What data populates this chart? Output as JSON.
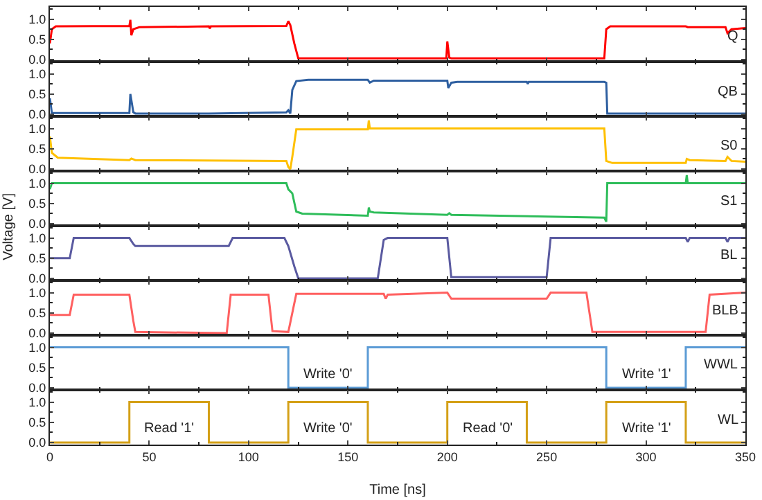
{
  "chart_data": [
    {
      "type": "line",
      "x": [
        0,
        1,
        3,
        40,
        40.5,
        41,
        42,
        45,
        80,
        80.5,
        81,
        119,
        120,
        121,
        123,
        125,
        199.5,
        200,
        201,
        202,
        279,
        280,
        282,
        320,
        321,
        340,
        341,
        343,
        350
      ],
      "series": [
        {
          "name": "Q",
          "color": "#ff0000",
          "values": [
            0.4,
            0.75,
            0.82,
            0.83,
            0.98,
            0.6,
            0.75,
            0.8,
            0.82,
            0.77,
            0.82,
            0.83,
            0.95,
            0.85,
            0.4,
            0.03,
            0.03,
            0.45,
            0.05,
            0.03,
            0.03,
            0.75,
            0.82,
            0.82,
            0.8,
            0.8,
            0.65,
            0.75,
            0.78
          ]
        }
      ],
      "xlim": [
        0,
        350
      ],
      "xticks": [
        0,
        50,
        100,
        150,
        200,
        250,
        300,
        350
      ],
      "ylim": [
        -0.05,
        1.3
      ],
      "yticks": [
        {
          "value": 0,
          "label": "0.0"
        },
        {
          "value": 0.5,
          "label": "0.5"
        },
        {
          "value": 1,
          "label": "1.0"
        }
      ],
      "tick_labels": "y",
      "grid": false,
      "legend": false
    },
    {
      "type": "line",
      "x": [
        0,
        1,
        40,
        40.5,
        42,
        43,
        80,
        119,
        120,
        121,
        122,
        124,
        130,
        160,
        161,
        163,
        199,
        200,
        200.5,
        202,
        205,
        240,
        240.5,
        241,
        279,
        280,
        280.5,
        350
      ],
      "series": [
        {
          "name": "QB",
          "color": "#2e5fa0",
          "values": [
            0.4,
            0.03,
            0.03,
            0.5,
            0.05,
            0.02,
            0.02,
            0.05,
            0.1,
            0.02,
            0.6,
            0.82,
            0.85,
            0.85,
            0.78,
            0.83,
            0.83,
            0.83,
            0.65,
            0.78,
            0.8,
            0.8,
            0.75,
            0.8,
            0.8,
            0.78,
            0.02,
            0.02
          ]
        }
      ],
      "xlim": [
        0,
        350
      ],
      "xticks": [
        0,
        50,
        100,
        150,
        200,
        250,
        300,
        350
      ],
      "ylim": [
        -0.05,
        1.3
      ],
      "yticks": [
        {
          "value": 0,
          "label": "0.0"
        },
        {
          "value": 0.5,
          "label": "0.5"
        },
        {
          "value": 1,
          "label": "1.0"
        }
      ],
      "tick_labels": "y",
      "grid": false,
      "legend": false
    },
    {
      "type": "line",
      "x": [
        0,
        1,
        4,
        40,
        41,
        43,
        119,
        120,
        121,
        122,
        124,
        160,
        160.5,
        161,
        279,
        280,
        283,
        320,
        320.5,
        322,
        340,
        341,
        343,
        350
      ],
      "series": [
        {
          "name": "S0",
          "color": "#ffc000",
          "values": [
            0.8,
            0.4,
            0.28,
            0.22,
            0.26,
            0.22,
            0.2,
            0.05,
            0,
            0.3,
            0.98,
            0.98,
            1.2,
            1.0,
            1.0,
            0.2,
            0.15,
            0.15,
            0.25,
            0.22,
            0.2,
            0.3,
            0.2,
            0.18
          ]
        }
      ],
      "xlim": [
        0,
        350
      ],
      "xticks": [
        0,
        50,
        100,
        150,
        200,
        250,
        300,
        350
      ],
      "ylim": [
        -0.05,
        1.3
      ],
      "yticks": [
        {
          "value": 0,
          "label": "0.0"
        },
        {
          "value": 0.5,
          "label": "0.5"
        },
        {
          "value": 1,
          "label": "1.0"
        }
      ],
      "tick_labels": "y",
      "grid": false,
      "legend": false
    },
    {
      "type": "line",
      "x": [
        0,
        1,
        119,
        120,
        122,
        124,
        127,
        160,
        160.5,
        161,
        163,
        200,
        201,
        202,
        279,
        280,
        280.5,
        320,
        320.5,
        321,
        350
      ],
      "series": [
        {
          "name": "S1",
          "color": "#2ebd5a",
          "values": [
            0.85,
            1.0,
            1.0,
            0.85,
            0.75,
            0.3,
            0.25,
            0.2,
            0.4,
            0.3,
            0.28,
            0.22,
            0.26,
            0.22,
            0.15,
            0.05,
            1.0,
            1.0,
            1.2,
            1.0,
            1.0
          ]
        }
      ],
      "xlim": [
        0,
        350
      ],
      "xticks": [
        0,
        50,
        100,
        150,
        200,
        250,
        300,
        350
      ],
      "ylim": [
        -0.05,
        1.3
      ],
      "yticks": [
        {
          "value": 0,
          "label": "0.0"
        },
        {
          "value": 0.5,
          "label": "0.5"
        },
        {
          "value": 1,
          "label": "1.0"
        }
      ],
      "tick_labels": "y",
      "grid": false,
      "legend": false,
      "ylabel": "Voltage [V]"
    },
    {
      "type": "line",
      "x": [
        0,
        10,
        12,
        40,
        42,
        43,
        90,
        92,
        118,
        120,
        123,
        125,
        165,
        168,
        170,
        200,
        202,
        250,
        252,
        280,
        320,
        321,
        322,
        340,
        341,
        342,
        350
      ],
      "series": [
        {
          "name": "BL",
          "color": "#5a5aa0",
          "values": [
            0.5,
            0.5,
            1.0,
            1.0,
            0.85,
            0.8,
            0.8,
            1.0,
            1.0,
            0.8,
            0.3,
            0.0,
            0.0,
            0.95,
            1.0,
            1.0,
            0.03,
            0.03,
            1.0,
            1.0,
            1.0,
            0.9,
            1.0,
            1.0,
            0.9,
            1.0,
            1.0
          ]
        }
      ],
      "xlim": [
        0,
        350
      ],
      "xticks": [
        0,
        50,
        100,
        150,
        200,
        250,
        300,
        350
      ],
      "ylim": [
        -0.05,
        1.3
      ],
      "yticks": [
        {
          "value": 0,
          "label": "0.0"
        },
        {
          "value": 0.5,
          "label": "0.5"
        },
        {
          "value": 1,
          "label": "1.0"
        }
      ],
      "tick_labels": "y",
      "grid": false,
      "legend": false
    },
    {
      "type": "line",
      "x": [
        0,
        10,
        12,
        40,
        42,
        43,
        89,
        91,
        110,
        112,
        120,
        122,
        124,
        168,
        169,
        170,
        200,
        202,
        250,
        252,
        270,
        273,
        330,
        332,
        350
      ],
      "series": [
        {
          "name": "BLB",
          "color": "#ff6060",
          "values": [
            0.45,
            0.45,
            0.95,
            0.95,
            0.3,
            0.03,
            0.0,
            0.95,
            0.95,
            0.05,
            0.03,
            0.5,
            0.97,
            0.97,
            0.85,
            0.95,
            1.0,
            0.85,
            0.85,
            1.0,
            1.0,
            0.03,
            0.03,
            0.95,
            1.0
          ]
        }
      ],
      "xlim": [
        0,
        350
      ],
      "xticks": [
        0,
        50,
        100,
        150,
        200,
        250,
        300,
        350
      ],
      "ylim": [
        -0.05,
        1.3
      ],
      "yticks": [
        {
          "value": 0,
          "label": "0.0"
        },
        {
          "value": 0.5,
          "label": "0.5"
        },
        {
          "value": 1,
          "label": "1.0"
        }
      ],
      "tick_labels": "y",
      "grid": false,
      "legend": false
    },
    {
      "type": "line",
      "x": [
        0,
        120,
        120,
        160,
        160,
        280,
        280,
        320,
        320,
        350
      ],
      "series": [
        {
          "name": "WWL",
          "color": "#5b9bd5",
          "values": [
            1,
            1,
            0,
            0,
            1,
            1,
            0,
            0,
            1,
            1
          ]
        }
      ],
      "xlim": [
        0,
        350
      ],
      "xticks": [
        0,
        50,
        100,
        150,
        200,
        250,
        300,
        350
      ],
      "ylim": [
        -0.05,
        1.3
      ],
      "yticks": [
        {
          "value": 0,
          "label": "0.0"
        },
        {
          "value": 0.5,
          "label": "0.5"
        },
        {
          "value": 1,
          "label": "1.0"
        }
      ],
      "tick_labels": "y",
      "grid": false,
      "legend": false,
      "annotations": [
        "Write '0'",
        "Write '1'"
      ]
    },
    {
      "type": "line",
      "x": [
        0,
        40,
        40,
        80,
        80,
        120,
        120,
        160,
        160,
        200,
        200,
        240,
        240,
        280,
        280,
        320,
        320,
        350
      ],
      "series": [
        {
          "name": "WL",
          "color": "#d4a017",
          "values": [
            0,
            0,
            1,
            1,
            0,
            0,
            1,
            1,
            0,
            0,
            1,
            1,
            0,
            0,
            1,
            1,
            0,
            0
          ]
        }
      ],
      "xlim": [
        0,
        350
      ],
      "xticks": [
        0,
        50,
        100,
        150,
        200,
        250,
        300,
        350
      ],
      "ylim": [
        -0.05,
        1.3
      ],
      "yticks": [
        {
          "value": 0,
          "label": "0.0"
        },
        {
          "value": 0.5,
          "label": "0.5"
        },
        {
          "value": 1,
          "label": "1.0"
        }
      ],
      "grid": false,
      "legend": false,
      "xlabel": "Time [ns]",
      "annotations": [
        "Read '1'",
        "Write '0'",
        "Read '0'",
        "Write '1'"
      ]
    }
  ]
}
